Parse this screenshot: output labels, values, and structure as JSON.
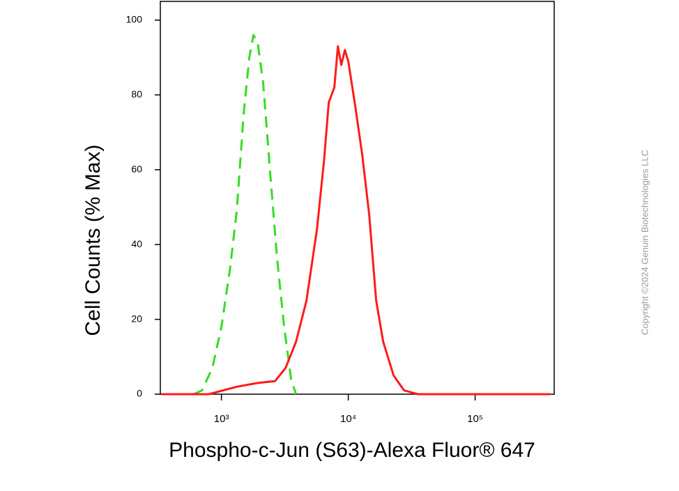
{
  "chart_data": {
    "type": "line",
    "xlabel": "Phospho-c-Jun (S63)-Alexa Fluor® 647",
    "ylabel": "Cell Counts (% Max)",
    "copyright": "Copyright ©2024 Genuin Biotechnologies LLC",
    "xscale": "log",
    "xlim": [
      330,
      420000
    ],
    "ylim": [
      0,
      105
    ],
    "xticks": [
      {
        "value": 1000,
        "label": "10³"
      },
      {
        "value": 10000,
        "label": "10⁴"
      },
      {
        "value": 100000,
        "label": "10⁵"
      }
    ],
    "yticks": [
      0,
      20,
      40,
      60,
      80,
      100
    ],
    "series": [
      {
        "color": "#33dd22",
        "dash": true,
        "x": [
          603,
          702,
          848,
          1000,
          1164,
          1321,
          1499,
          1659,
          1790,
          1931,
          2137,
          2424,
          2752,
          3123,
          3543,
          3872
        ],
        "values": [
          0,
          1,
          7,
          18,
          33,
          49,
          75,
          90,
          96,
          94,
          83,
          59,
          36,
          18,
          4,
          0
        ]
      },
      {
        "color": "#ff1a1a",
        "dash": false,
        "x": [
          340,
          796,
          1321,
          1931,
          2649,
          3202,
          3872,
          4680,
          5660,
          6425,
          7018,
          7762,
          8279,
          8811,
          9397,
          10000,
          11350,
          12880,
          14620,
          16590,
          18840,
          22750,
          27540,
          35430,
          390000
        ],
        "values": [
          0,
          0,
          2,
          3,
          3.5,
          7,
          14,
          25,
          44,
          62,
          78,
          82,
          93,
          88,
          92,
          89,
          77,
          64,
          48,
          25,
          14,
          5,
          1,
          0,
          0
        ]
      }
    ]
  }
}
